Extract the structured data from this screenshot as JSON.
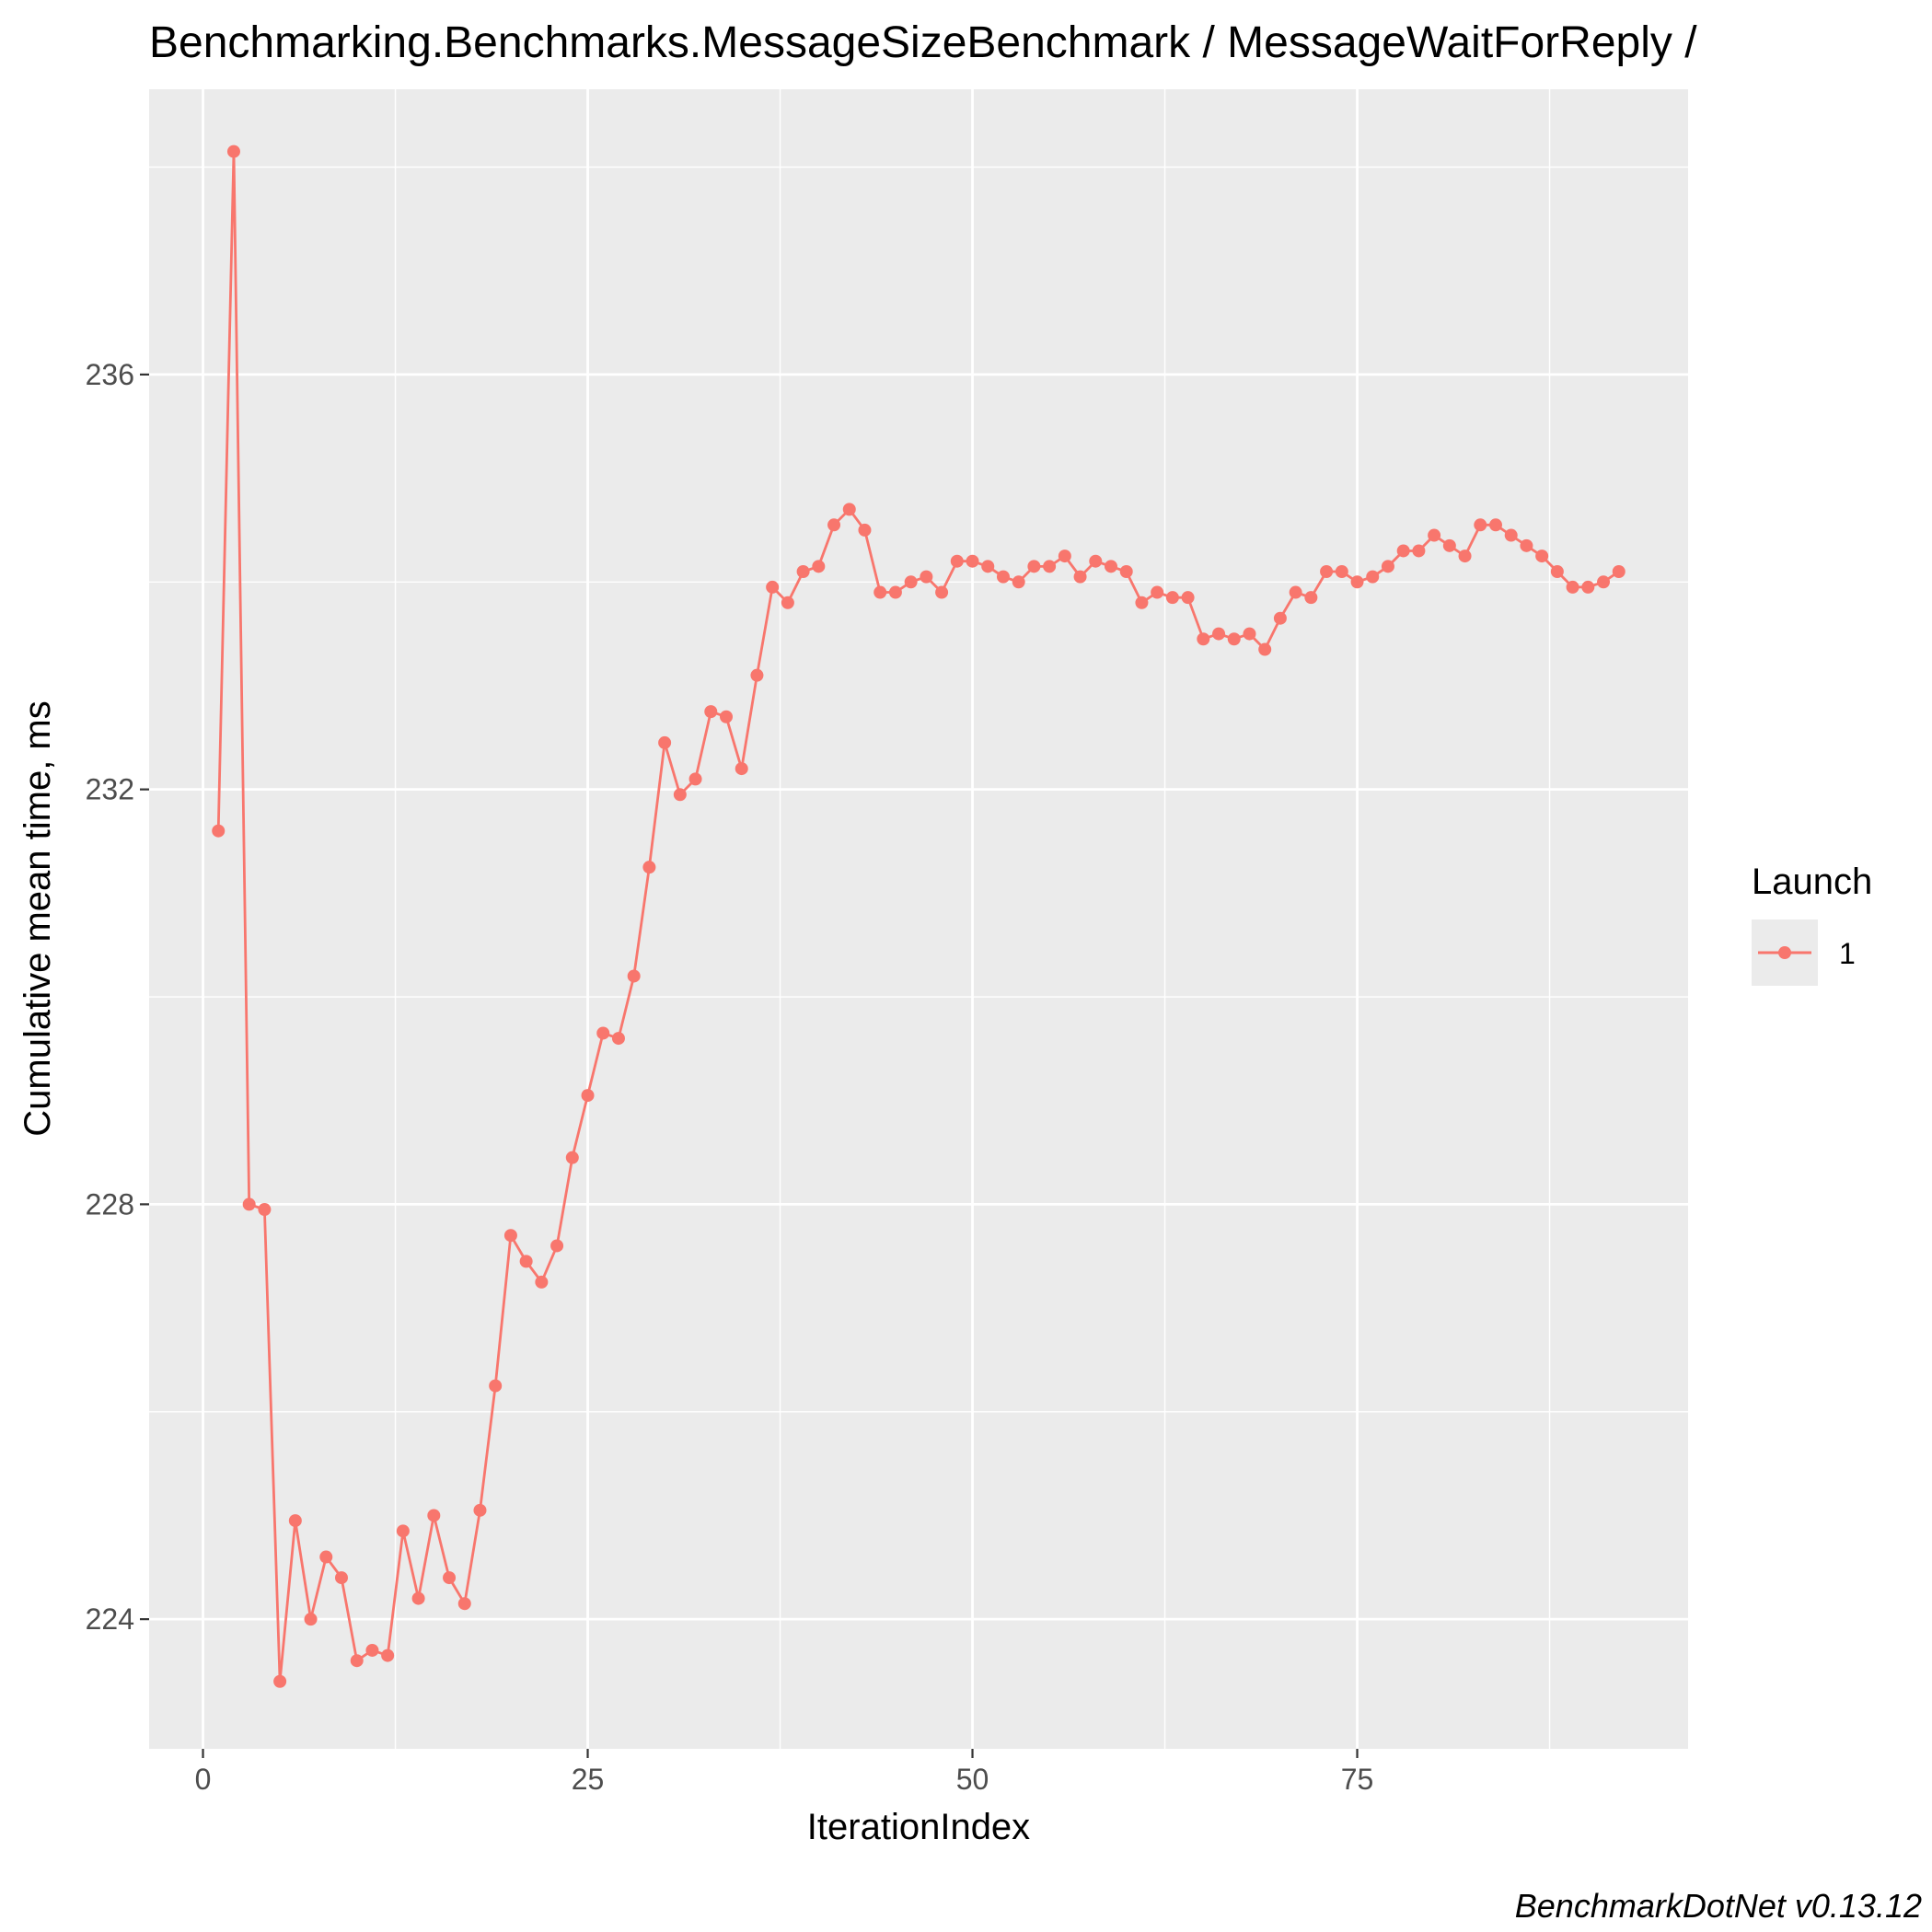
{
  "chart_data": {
    "type": "line",
    "title": "Benchmarking.Benchmarks.MessageSizeBenchmark / MessageWaitForReply /",
    "xlabel": "IterationIndex",
    "ylabel": "Cumulative mean time, ms",
    "caption": "BenchmarkDotNet v0.13.12",
    "xlim": [
      -3.5,
      96.5
    ],
    "ylim": [
      222.75,
      238.75
    ],
    "x_ticks": [
      0,
      25,
      50,
      75
    ],
    "x_tick_labels": [
      "0",
      "25",
      "50",
      "75"
    ],
    "y_ticks": [
      224,
      228,
      232,
      236
    ],
    "y_tick_labels": [
      "224",
      "228",
      "232",
      "236"
    ],
    "grid": true,
    "legend": {
      "title": "Launch",
      "position": "right",
      "entries": [
        "1"
      ]
    },
    "colors": {
      "series": "#f8766d",
      "panel": "#ebebeb",
      "grid": "#ffffff"
    },
    "series": [
      {
        "name": "1",
        "x": [
          1,
          2,
          3,
          4,
          5,
          6,
          7,
          8,
          9,
          10,
          11,
          12,
          13,
          14,
          15,
          16,
          17,
          18,
          19,
          20,
          21,
          22,
          23,
          24,
          25,
          26,
          27,
          28,
          29,
          30,
          31,
          32,
          33,
          34,
          35,
          36,
          37,
          38,
          39,
          40,
          41,
          42,
          43,
          44,
          45,
          46,
          47,
          48,
          49,
          50,
          51,
          52,
          53,
          54,
          55,
          56,
          57,
          58,
          59,
          60,
          61,
          62,
          63,
          64,
          65,
          66,
          67,
          68,
          69,
          70,
          71,
          72,
          73,
          74,
          75,
          76,
          77,
          78,
          79,
          80,
          81,
          82,
          83,
          84,
          85,
          86,
          87,
          88,
          89,
          90,
          91,
          92
        ],
        "values": [
          231.6,
          238.15,
          228.0,
          227.95,
          223.4,
          224.95,
          224.0,
          224.6,
          224.4,
          223.6,
          223.7,
          223.65,
          224.85,
          224.2,
          225.0,
          224.4,
          224.15,
          225.05,
          226.25,
          227.7,
          227.45,
          227.25,
          227.6,
          228.45,
          229.05,
          229.65,
          229.6,
          230.2,
          231.25,
          232.45,
          231.95,
          232.1,
          232.75,
          232.7,
          232.2,
          233.1,
          233.95,
          233.8,
          234.1,
          234.15,
          234.55,
          234.7,
          234.5,
          233.9,
          233.9,
          234.0,
          234.05,
          233.9,
          234.2,
          234.2,
          234.15,
          234.05,
          234.0,
          234.15,
          234.15,
          234.25,
          234.05,
          234.2,
          234.15,
          234.1,
          233.8,
          233.9,
          233.85,
          233.85,
          233.45,
          233.5,
          233.45,
          233.5,
          233.35,
          233.65,
          233.9,
          233.85,
          234.1,
          234.1,
          234.0,
          234.05,
          234.15,
          234.3,
          234.3,
          234.45,
          234.35,
          234.25,
          234.55,
          234.55,
          234.45,
          234.35,
          234.25,
          234.1,
          233.95,
          233.95,
          234.0,
          234.1
        ]
      }
    ]
  }
}
